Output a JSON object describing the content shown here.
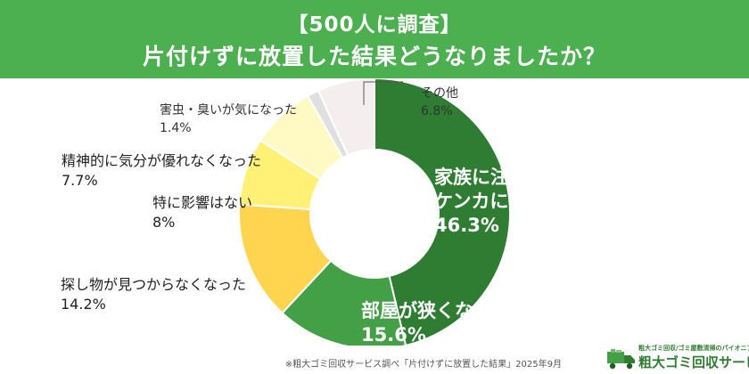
{
  "header": {
    "line1": "【500人に調査】",
    "line2": "片付けずに放置した結果どうなりましたか？"
  },
  "chart_data": {
    "type": "pie",
    "slices": [
      {
        "label": "家族に注意されたケンカになった",
        "label_lines": [
          "家族に注意された",
          "ケンカになった"
        ],
        "value": 46.3,
        "value_text": "46.3%",
        "color": "#2e7d32"
      },
      {
        "label": "部屋が狭くなった",
        "label_lines": [
          "部屋が狭くなった"
        ],
        "value": 15.6,
        "value_text": "15.6%",
        "color": "#43a047"
      },
      {
        "label": "探し物が見つからなくなった",
        "label_lines": [
          "探し物が見つからなくなった"
        ],
        "value": 14.2,
        "value_text": "14.2%",
        "color": "#ffd54f"
      },
      {
        "label": "特に影響はない",
        "label_lines": [
          "特に影響はない"
        ],
        "value": 8,
        "value_text": "8%",
        "color": "#fff176"
      },
      {
        "label": "精神的に気分が優れなくなった",
        "label_lines": [
          "精神的に気分が優れなくなった"
        ],
        "value": 7.7,
        "value_text": "7.7%",
        "color": "#fff9c4"
      },
      {
        "label": "害虫・臭いが気になった",
        "label_lines": [
          "害虫・臭いが気になった"
        ],
        "value": 1.4,
        "value_text": "1.4%",
        "color": "#e0e0e0"
      },
      {
        "label": "その他",
        "label_lines": [
          "その他"
        ],
        "value": 6.8,
        "value_text": "6.8%",
        "color": "#f5eeee"
      }
    ]
  },
  "footnote": "※粗大ゴミ回収サービス調べ「片付けずに放置した結果」2025年9月",
  "logo": {
    "tagline": "粗大ゴミ回収/ゴミ屋敷清掃のパイオニア",
    "name": "粗大ゴミ回収サービス"
  }
}
